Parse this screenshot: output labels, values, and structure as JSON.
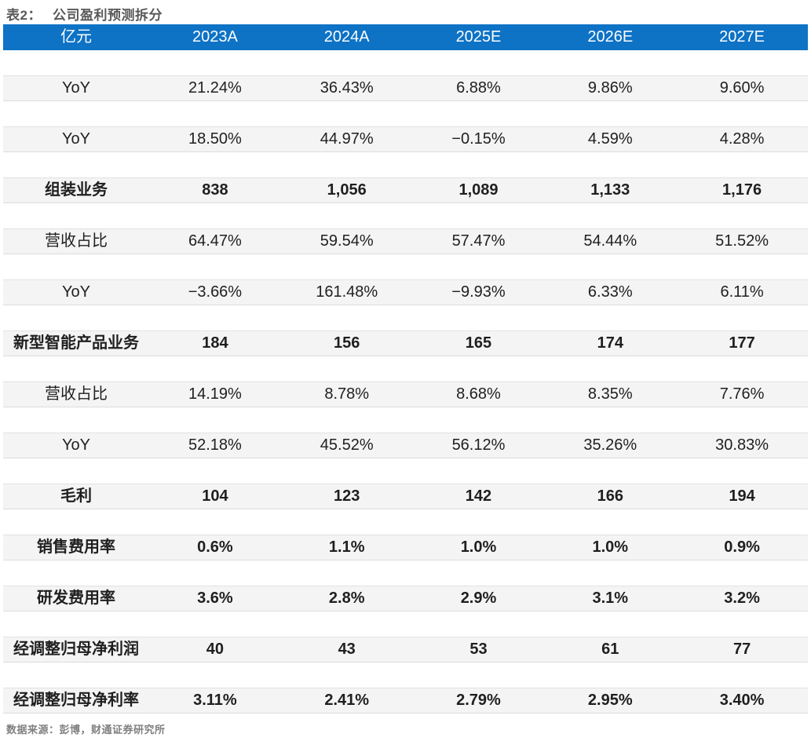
{
  "title": {
    "prefix": "表2：",
    "text": "公司盈利预测拆分"
  },
  "table": {
    "unit_header": "亿元",
    "columns": [
      "2023A",
      "2024A",
      "2025E",
      "2026E",
      "2027E"
    ],
    "rows": [
      {
        "label": "YoY",
        "values": [
          "21.24%",
          "36.43%",
          "6.88%",
          "9.86%",
          "9.60%"
        ]
      },
      {
        "label": "YoY",
        "values": [
          "18.50%",
          "44.97%",
          "−0.15%",
          "4.59%",
          "4.28%"
        ]
      },
      {
        "label": "组装业务",
        "values": [
          "838",
          "1,056",
          "1,089",
          "1,133",
          "1,176"
        ]
      },
      {
        "label": "营收占比",
        "values": [
          "64.47%",
          "59.54%",
          "57.47%",
          "54.44%",
          "51.52%"
        ]
      },
      {
        "label": "YoY",
        "values": [
          "−3.66%",
          "161.48%",
          "−9.93%",
          "6.33%",
          "6.11%"
        ]
      },
      {
        "label": "新型智能产品业务",
        "values": [
          "184",
          "156",
          "165",
          "174",
          "177"
        ]
      },
      {
        "label": "营收占比",
        "values": [
          "14.19%",
          "8.78%",
          "8.68%",
          "8.35%",
          "7.76%"
        ]
      },
      {
        "label": "YoY",
        "values": [
          "52.18%",
          "45.52%",
          "56.12%",
          "35.26%",
          "30.83%"
        ]
      },
      {
        "label": "毛利",
        "values": [
          "104",
          "123",
          "142",
          "166",
          "194"
        ]
      },
      {
        "label": "销售费用率",
        "values": [
          "0.6%",
          "1.1%",
          "1.0%",
          "1.0%",
          "0.9%"
        ]
      },
      {
        "label": "研发费用率",
        "values": [
          "3.6%",
          "2.8%",
          "2.9%",
          "3.1%",
          "3.2%"
        ]
      },
      {
        "label": "经调整归母净利润",
        "values": [
          "40",
          "43",
          "53",
          "61",
          "77"
        ]
      },
      {
        "label": "经调整归母净利率",
        "values": [
          "3.11%",
          "2.41%",
          "2.79%",
          "2.95%",
          "3.40%"
        ]
      }
    ]
  },
  "footer": {
    "source": "数据来源：彭博，财通证券研究所"
  },
  "colors": {
    "header_bg": "#0E72C5",
    "header_text": "#FAFDFF",
    "row_bg": "#F4F4F4",
    "title_text": "#595959",
    "source_text": "#808080"
  }
}
